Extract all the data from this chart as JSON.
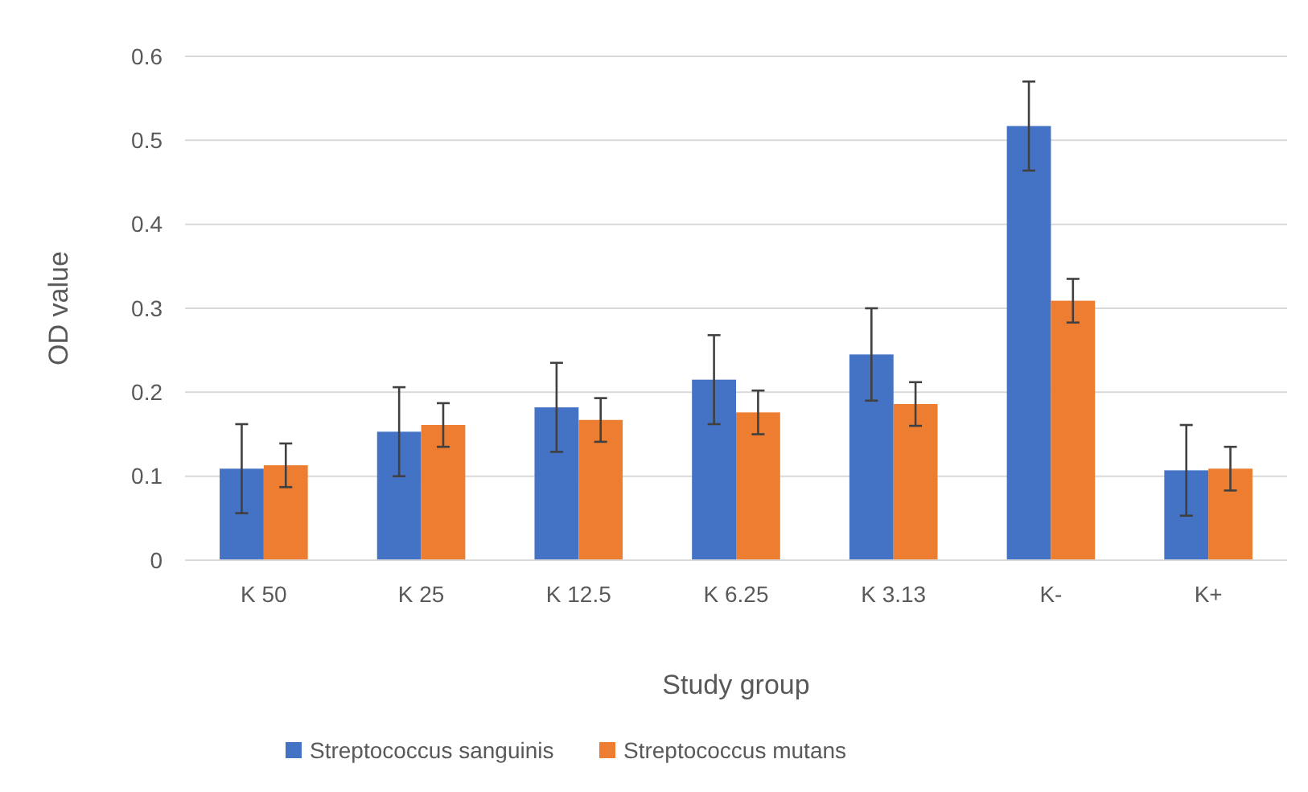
{
  "chart_data": {
    "type": "bar",
    "xlabel": "Study group",
    "ylabel": "OD value",
    "categories": [
      "K 50",
      "K 25",
      "K 12.5",
      "K 6.25",
      "K 3.13",
      "K-",
      "K+"
    ],
    "series": [
      {
        "name": "Streptococcus sanguinis",
        "color": "#4472c4",
        "values": [
          0.109,
          0.153,
          0.182,
          0.215,
          0.245,
          0.517,
          0.107
        ],
        "errors": [
          0.053,
          0.053,
          0.053,
          0.053,
          0.055,
          0.053,
          0.054
        ]
      },
      {
        "name": "Streptococcus mutans",
        "color": "#ed7d31",
        "values": [
          0.113,
          0.161,
          0.167,
          0.176,
          0.186,
          0.309,
          0.109
        ],
        "errors": [
          0.026,
          0.026,
          0.026,
          0.026,
          0.026,
          0.026,
          0.026
        ]
      }
    ],
    "ylim": [
      0,
      0.6
    ],
    "yticks": [
      {
        "value": 0,
        "label": "0"
      },
      0.1,
      0.2,
      0.3,
      0.4,
      0.5,
      0.6
    ],
    "grid": "y",
    "legend": "bottom"
  }
}
